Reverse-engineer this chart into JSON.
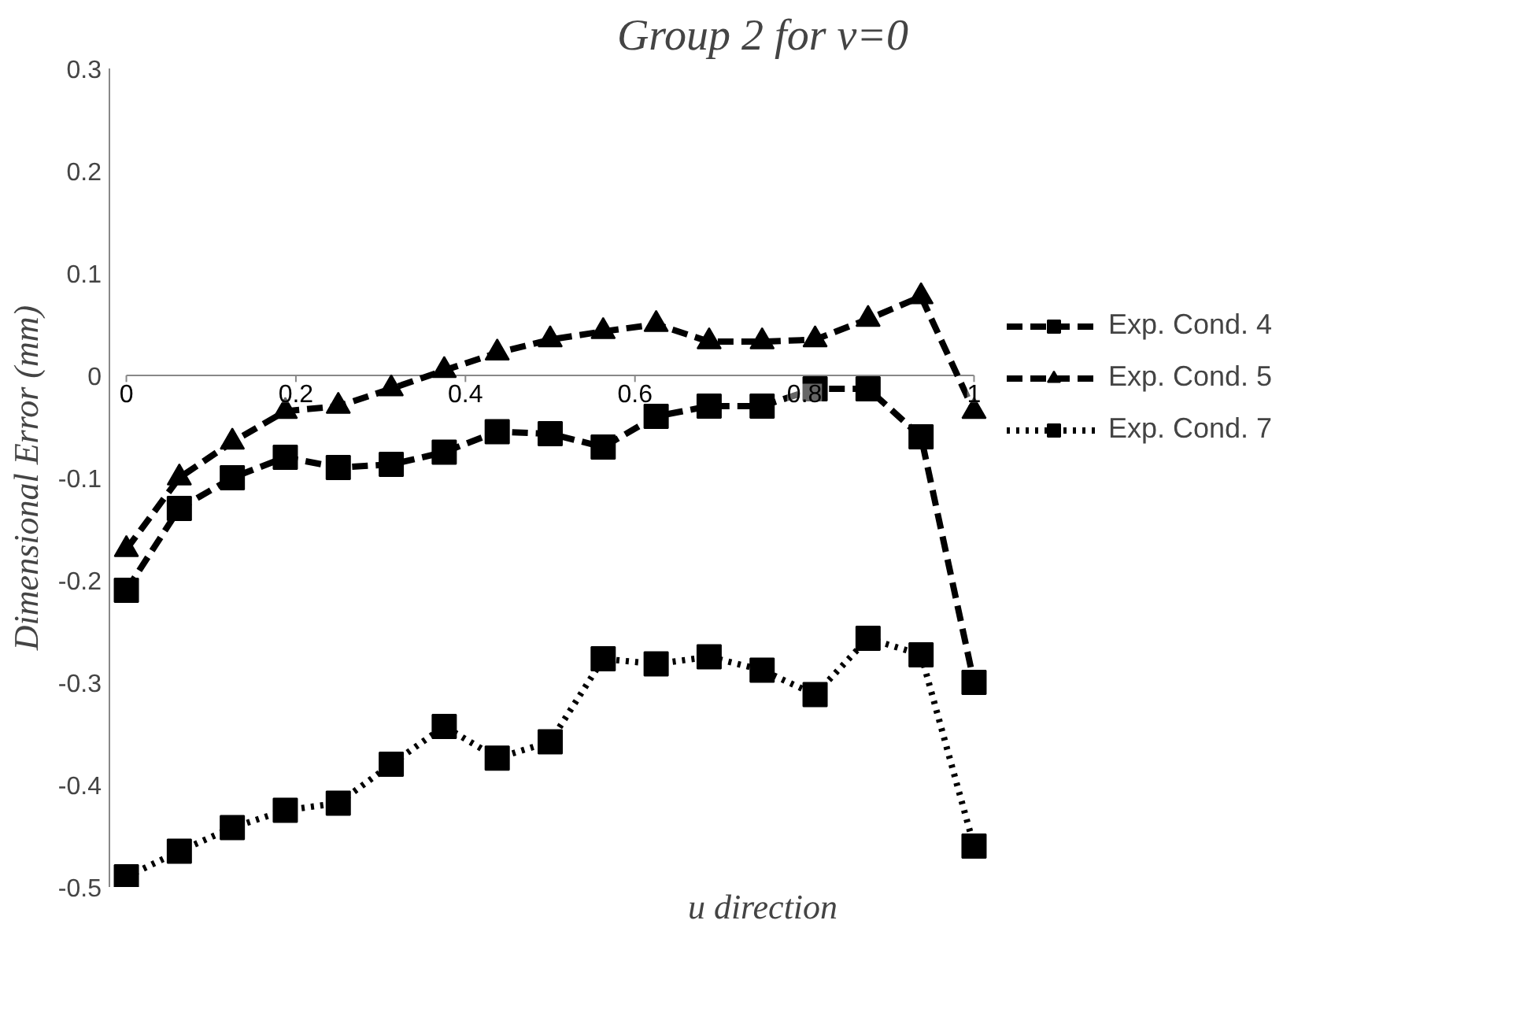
{
  "chart_data": {
    "type": "line",
    "title": "Group 2 for v=0",
    "xlabel": "u direction",
    "ylabel": "Dimensional Error (mm)",
    "x": [
      0,
      0.0625,
      0.125,
      0.1875,
      0.25,
      0.3125,
      0.375,
      0.4375,
      0.5,
      0.5625,
      0.625,
      0.6875,
      0.75,
      0.8125,
      0.875,
      0.9375,
      1
    ],
    "series": [
      {
        "name": "Exp. Cond. 4",
        "color": "#000000",
        "marker": "square",
        "line_style": "dashed",
        "values": [
          -0.21,
          -0.13,
          -0.1,
          -0.08,
          -0.09,
          -0.087,
          -0.075,
          -0.055,
          -0.057,
          -0.07,
          -0.04,
          -0.03,
          -0.03,
          -0.013,
          -0.013,
          -0.06,
          -0.3
        ]
      },
      {
        "name": "Exp. Cond. 5",
        "color": "#000000",
        "marker": "triangle",
        "line_style": "dashed",
        "values": [
          -0.17,
          -0.1,
          -0.065,
          -0.035,
          -0.03,
          -0.013,
          0.005,
          0.022,
          0.035,
          0.043,
          0.05,
          0.033,
          0.033,
          0.035,
          0.055,
          0.077,
          -0.035
        ]
      },
      {
        "name": "Exp. Cond. 7",
        "color": "#000000",
        "marker": "square",
        "line_style": "dotted",
        "values": [
          -0.49,
          -0.465,
          -0.442,
          -0.425,
          -0.418,
          -0.38,
          -0.343,
          -0.374,
          -0.358,
          -0.277,
          -0.282,
          -0.275,
          -0.288,
          -0.312,
          -0.257,
          -0.273,
          -0.46
        ]
      }
    ],
    "xlim": [
      0,
      1
    ],
    "xticks": [
      0,
      0.2,
      0.4,
      0.6,
      0.8,
      1
    ],
    "ylim": [
      -0.5,
      0.3
    ],
    "yticks": [
      -0.5,
      -0.4,
      -0.3,
      -0.2,
      -0.1,
      0,
      0.1,
      0.2,
      0.3
    ],
    "grid": false,
    "legend": "right"
  }
}
